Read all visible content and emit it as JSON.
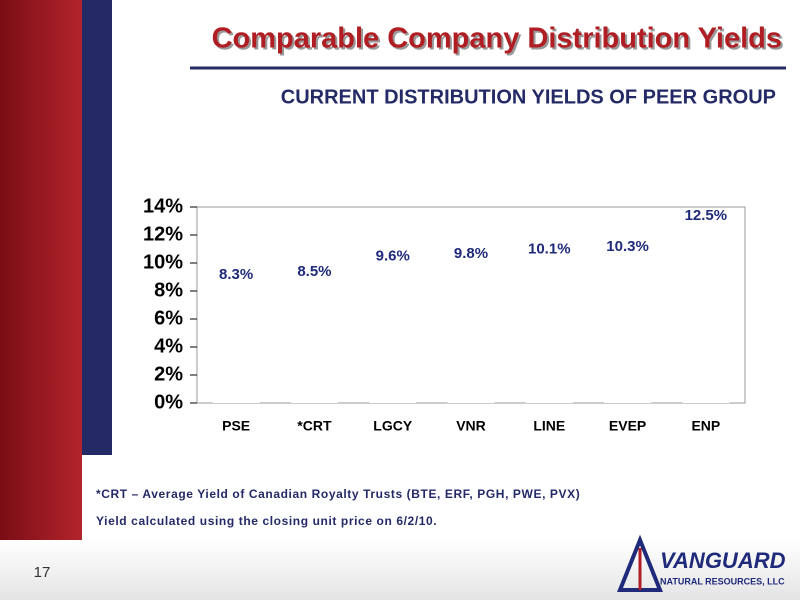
{
  "slide": {
    "title": "Comparable Company Distribution Yields",
    "subtitle": "CURRENT DISTRIBUTION YIELDS OF PEER GROUP",
    "footnotes": [
      "*CRT – Average Yield of Canadian Royalty Trusts (BTE, ERF, PGH, PWE, PVX)",
      "Yield calculated using the closing unit price on 6/2/10."
    ],
    "page_number": "17",
    "logo": {
      "name": "VANGUARD",
      "tagline": "NATURAL RESOURCES, LLC"
    }
  },
  "chart_data": {
    "type": "bar",
    "categories": [
      "PSE",
      "*CRT",
      "LGCY",
      "VNR",
      "LINE",
      "EVEP",
      "ENP"
    ],
    "values": [
      8.3,
      8.5,
      9.6,
      9.8,
      10.1,
      10.3,
      12.5
    ],
    "value_labels": [
      "8.3%",
      "8.5%",
      "9.6%",
      "9.8%",
      "10.1%",
      "10.3%",
      "12.5%"
    ],
    "color": "#ffffff",
    "label_color": "#1f2a7a",
    "ylim": [
      0,
      14
    ],
    "yticks": [
      {
        "value": 0,
        "label": "0%"
      },
      {
        "value": 2,
        "label": "2%"
      },
      {
        "value": 4,
        "label": "4%"
      },
      {
        "value": 6,
        "label": "6%"
      },
      {
        "value": 8,
        "label": "8%"
      },
      {
        "value": 10,
        "label": "10%"
      },
      {
        "value": 12,
        "label": "12%"
      },
      {
        "value": 14,
        "label": "14%"
      }
    ],
    "grid": false
  }
}
